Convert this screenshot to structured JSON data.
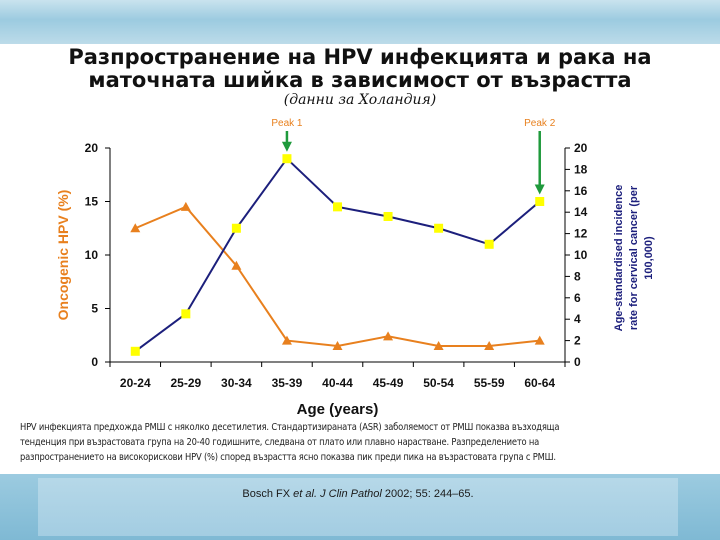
{
  "slide": {
    "title_line1": "Разпространение на HPV инфекцията и рака на",
    "title_line2": "маточната шийка в зависимост от възрастта",
    "subtitle": "(данни за Холандия)",
    "caption_line1": "HPV инфекцията предхожда  РМШ с няколко десетилетия.  Стандартизираната  (ASR) заболяемост от  РМШ показва възходяща",
    "caption_line2": "тенденция при възрастовата група на 20-40 годишните, следвана от плато или плавно нарастване. Разпределението на",
    "caption_line3": "разпространението на високорискови HPV (%) според възрастта ясно показва пик преди пика на възрастовата група  с  РМШ.",
    "reference_authors": "Bosch FX ",
    "reference_etal": "et al.",
    "reference_journal": "J Clin Pathol",
    "reference_rest": " 2002; 55: 244–65."
  },
  "colors": {
    "hpv": "#e8801e",
    "cancer": "#1c1f7c",
    "marker": "#ffff00",
    "peak_arrow": "#1f9a3c",
    "axis": "#000000"
  },
  "chart_data": {
    "type": "line",
    "categories": [
      "20-24",
      "25-29",
      "30-34",
      "35-39",
      "40-44",
      "45-49",
      "50-54",
      "55-59",
      "60-64"
    ],
    "xlabel": "Age (years)",
    "y_left_label": "Oncogenic HPV (%)",
    "y_left_lim": [
      0,
      20
    ],
    "y_left_ticks": [
      0,
      5,
      10,
      15,
      20
    ],
    "y_right_label_line1": "Age-standardised incidence",
    "y_right_label_line2": "rate for cervical cancer (per",
    "y_right_label_line3": "100,000)",
    "y_right_lim": [
      0,
      20
    ],
    "y_right_ticks": [
      0,
      2,
      4,
      6,
      8,
      10,
      12,
      14,
      16,
      18,
      20
    ],
    "series": [
      {
        "axis": "left",
        "marker": "triangle",
        "values": [
          12.5,
          14.5,
          9,
          2,
          1.5,
          2.4,
          1.5,
          1.5,
          2
        ]
      },
      {
        "axis": "right",
        "marker": "square",
        "values": [
          1,
          4.5,
          12.5,
          19,
          14.5,
          13.6,
          12.5,
          11,
          15
        ]
      }
    ],
    "annotations": [
      {
        "label": "Peak 1",
        "category": "35-39"
      },
      {
        "label": "Peak 2",
        "category": "60-64"
      }
    ]
  }
}
